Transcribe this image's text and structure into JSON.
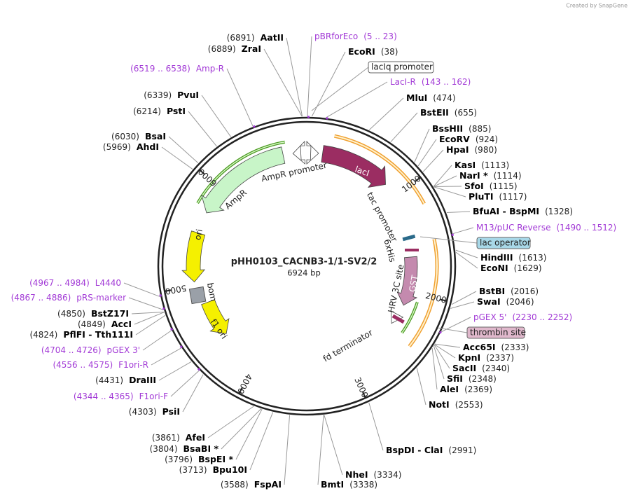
{
  "credit": "Created by SnapGene",
  "plasmid": {
    "name": "pHH0103_CACNB3-1/1-SV2/2",
    "size": "6924 bp"
  },
  "ticks": [
    "1000",
    "2000",
    "3000",
    "4000",
    "5000",
    "6000"
  ],
  "enzymes": [
    {
      "name": "AatII",
      "position": "(6891)"
    },
    {
      "name": "ZraI",
      "position": "(6889)"
    },
    {
      "name": "PvuI",
      "position": "(6339)"
    },
    {
      "name": "PstI",
      "position": "(6214)"
    },
    {
      "name": "BsaI",
      "position": "(6030)"
    },
    {
      "name": "AhdI",
      "position": "(5969)"
    },
    {
      "name": "BstZ17I",
      "position": "(4850)"
    },
    {
      "name": "AccI",
      "position": "(4849)"
    },
    {
      "name": "PflFI - Tth111I",
      "position": "(4824)"
    },
    {
      "name": "DraIII",
      "position": "(4431)"
    },
    {
      "name": "PsiI",
      "position": "(4303)"
    },
    {
      "name": "AfeI",
      "position": "(3861)"
    },
    {
      "name": "BsaBI *",
      "position": "(3804)"
    },
    {
      "name": "BspEI *",
      "position": "(3796)"
    },
    {
      "name": "Bpu10I",
      "position": "(3713)"
    },
    {
      "name": "FspAI",
      "position": "(3588)"
    },
    {
      "name": "EcoRI",
      "position": "(38)"
    },
    {
      "name": "MluI",
      "position": "(474)"
    },
    {
      "name": "BstEII",
      "position": "(655)"
    },
    {
      "name": "BssHII",
      "position": "(885)"
    },
    {
      "name": "EcoRV",
      "position": "(924)"
    },
    {
      "name": "HpaI",
      "position": "(980)"
    },
    {
      "name": "KasI",
      "position": "(1113)"
    },
    {
      "name": "NarI *",
      "position": "(1114)"
    },
    {
      "name": "SfoI",
      "position": "(1115)"
    },
    {
      "name": "PluTI",
      "position": "(1117)"
    },
    {
      "name": "BfuAI - BspMI",
      "position": "(1328)"
    },
    {
      "name": "HindIII",
      "position": "(1613)"
    },
    {
      "name": "EcoNI",
      "position": "(1629)"
    },
    {
      "name": "BstBI",
      "position": "(2016)"
    },
    {
      "name": "SwaI",
      "position": "(2046)"
    },
    {
      "name": "Acc65I",
      "position": "(2333)"
    },
    {
      "name": "KpnI",
      "position": "(2337)"
    },
    {
      "name": "SacII",
      "position": "(2340)"
    },
    {
      "name": "SfiI",
      "position": "(2348)"
    },
    {
      "name": "AleI",
      "position": "(2369)"
    },
    {
      "name": "NotI",
      "position": "(2553)"
    },
    {
      "name": "BspDI - ClaI",
      "position": "(2991)"
    },
    {
      "name": "NheI",
      "position": "(3334)"
    },
    {
      "name": "BmtI",
      "position": "(3338)"
    }
  ],
  "primers": [
    {
      "name": "pBRforEco",
      "range": "(5 .. 23)"
    },
    {
      "name": "Amp-R",
      "range": "(6519 .. 6538)"
    },
    {
      "name": "LacI-R",
      "range": "(143 .. 162)"
    },
    {
      "name": "M13/pUC Reverse",
      "range": "(1490 .. 1512)"
    },
    {
      "name": "pGEX 5'",
      "range": "(2230 .. 2252)"
    },
    {
      "name": "L4440",
      "range": "(4967 .. 4984)"
    },
    {
      "name": "pRS-marker",
      "range": "(4867 .. 4886)"
    },
    {
      "name": "pGEX 3'",
      "range": "(4704 .. 4726)"
    },
    {
      "name": "F1ori-R",
      "range": "(4556 .. 4575)"
    },
    {
      "name": "F1ori-F",
      "range": "(4344 .. 4365)"
    }
  ],
  "boxed_features": [
    "lacIq promoter",
    "lac operator",
    "thrombin site"
  ],
  "features": [
    "AmpR promoter",
    "AmpR",
    "lacI",
    "tac promoter",
    "6xHis",
    "HRV 3C site",
    "GST",
    "fd terminator",
    "ori",
    "bom",
    "f1 ori"
  ]
}
